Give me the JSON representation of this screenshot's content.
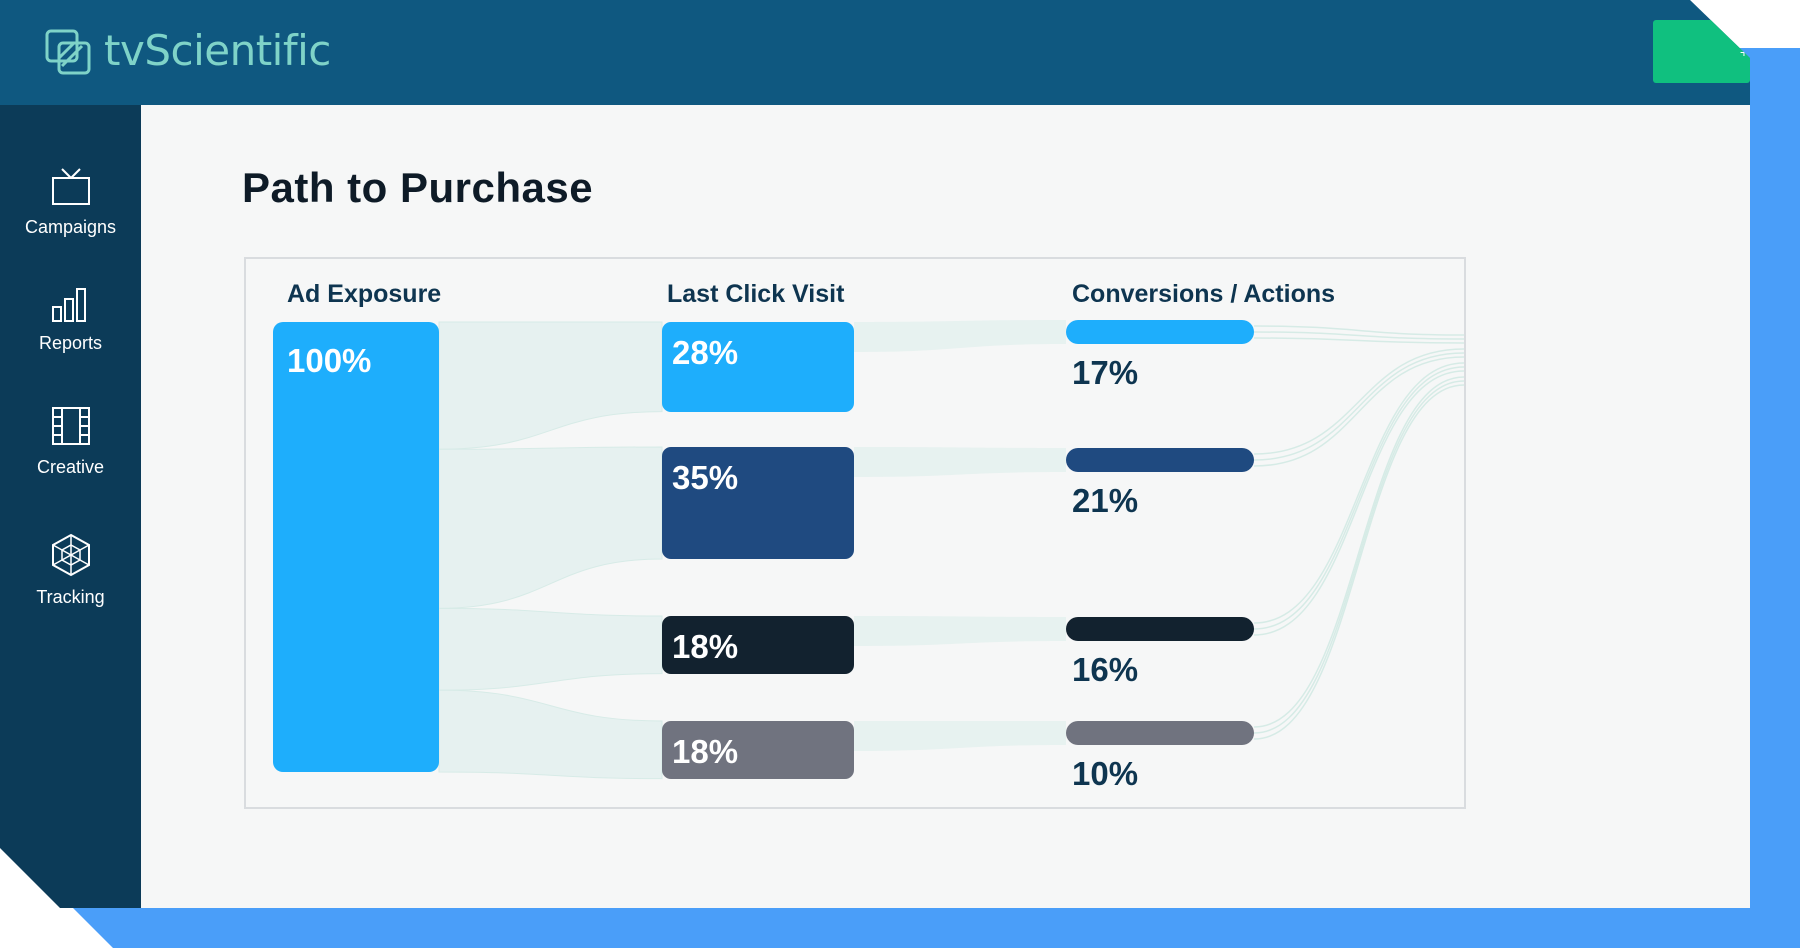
{
  "app": {
    "name": "tvScientific"
  },
  "sidebar": {
    "items": [
      {
        "label": "Campaigns",
        "icon": "tv-icon"
      },
      {
        "label": "Reports",
        "icon": "bar-chart-icon"
      },
      {
        "label": "Creative",
        "icon": "film-icon"
      },
      {
        "label": "Tracking",
        "icon": "web-icon"
      }
    ]
  },
  "page": {
    "title": "Path to Purchase"
  },
  "colors": {
    "topbar": "#0f5880",
    "sidebar": "#0c3b58",
    "logo": "#7fd3c8",
    "accent_green": "#10c07f",
    "backdrop": "#4a9ef9",
    "series": [
      "#1eaefc",
      "#1f4a80",
      "#12222f",
      "#70737f"
    ]
  },
  "chart_data": {
    "type": "sankey",
    "stages": [
      "Ad Exposure",
      "Last Click Visit",
      "Conversions / Actions"
    ],
    "ad_exposure": {
      "label": "100%",
      "value": 100
    },
    "last_click_visit": [
      {
        "label": "28%",
        "value": 28
      },
      {
        "label": "35%",
        "value": 35
      },
      {
        "label": "18%",
        "value": 18
      },
      {
        "label": "18%",
        "value": 18
      }
    ],
    "conversions": [
      {
        "label": "17%",
        "value": 17
      },
      {
        "label": "21%",
        "value": 21
      },
      {
        "label": "16%",
        "value": 16
      },
      {
        "label": "10%",
        "value": 10
      }
    ]
  }
}
